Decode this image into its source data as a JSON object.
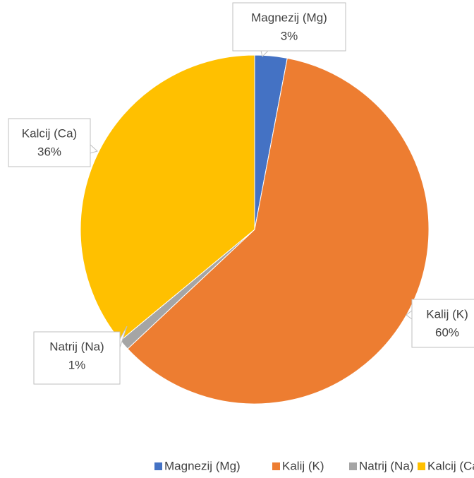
{
  "chart_data": {
    "type": "pie",
    "categories": [
      "Magnezij (Mg)",
      "Kalij (K)",
      "Natrij (Na)",
      "Kalcij (Ca)"
    ],
    "values": [
      3,
      60,
      1,
      36
    ],
    "value_labels": [
      "3%",
      "60%",
      "1%",
      "36%"
    ],
    "colors": [
      "#4472c4",
      "#ed7d31",
      "#a5a5a5",
      "#ffc000"
    ],
    "legend": "bottom"
  }
}
